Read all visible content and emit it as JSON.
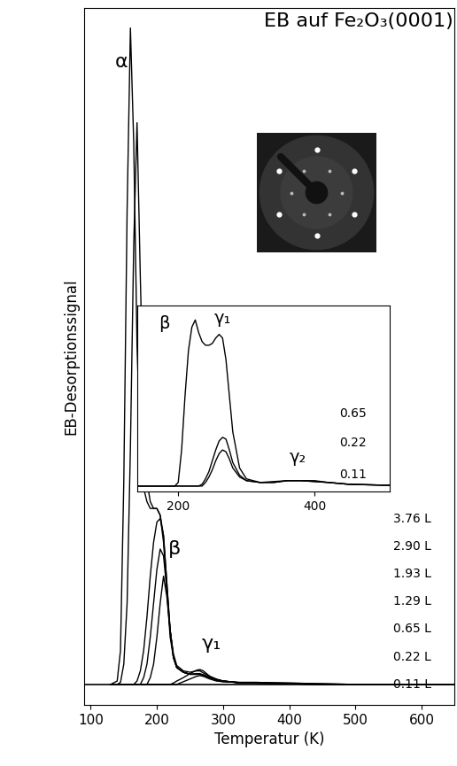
{
  "chart_data": [
    {
      "type": "line",
      "title": "EB auf Fe₂O₃(0001)",
      "x_label": "Temperatur (K)",
      "y_label": "EB-Desorptionssignal",
      "xlim": [
        90,
        650
      ],
      "xticks": [
        100,
        200,
        300,
        400,
        500,
        600
      ],
      "ylim": [
        -3,
        100
      ],
      "tick_labels": "x",
      "color": "#000000",
      "annotations": [
        "α",
        "β",
        "γ₁"
      ],
      "x": [
        130,
        140,
        145,
        150,
        155,
        160,
        165,
        170,
        175,
        180,
        185,
        190,
        195,
        200,
        205,
        210,
        215,
        220,
        225,
        230,
        240,
        250,
        260,
        265,
        270,
        280,
        290,
        300,
        320,
        350,
        400,
        450,
        500,
        550,
        600,
        650
      ],
      "series": [
        {
          "name": "3.76 L",
          "values": [
            0,
            0.5,
            5,
            30,
            70,
            97,
            80,
            50,
            35,
            29,
            27,
            26,
            26,
            26,
            25,
            22,
            15,
            8,
            4,
            2.5,
            1.8,
            1.5,
            1.5,
            1.5,
            1.4,
            1,
            0.7,
            0.5,
            0.3,
            0.2,
            0.1,
            0,
            0,
            0,
            0,
            0
          ]
        },
        {
          "name": "2.90 L",
          "values": [
            0,
            0,
            0.3,
            3,
            12,
            35,
            65,
            83,
            60,
            40,
            30,
            27,
            26,
            26,
            25,
            21,
            14,
            7,
            4,
            2.5,
            1.8,
            1.5,
            1.5,
            1.5,
            1.4,
            1,
            0.7,
            0.5,
            0.3,
            0.2,
            0.1,
            0,
            0,
            0,
            0,
            0
          ]
        },
        {
          "name": "1.93 L",
          "values": [
            0,
            0,
            0,
            0,
            0,
            0,
            0,
            0.5,
            2,
            5,
            10,
            16,
            21,
            24,
            24.5,
            22,
            15,
            8,
            4,
            2.5,
            1.8,
            1.5,
            1.5,
            1.5,
            1.4,
            1,
            0.7,
            0.5,
            0.3,
            0.2,
            0.1,
            0,
            0,
            0,
            0,
            0
          ]
        },
        {
          "name": "1.29 L",
          "values": [
            0,
            0,
            0,
            0,
            0,
            0,
            0,
            0,
            0,
            1,
            3,
            7,
            12,
            17,
            20,
            19,
            14,
            8,
            4,
            2.5,
            1.8,
            1.5,
            1.6,
            1.6,
            1.4,
            1,
            0.7,
            0.5,
            0.3,
            0.2,
            0.1,
            0,
            0,
            0,
            0,
            0
          ]
        },
        {
          "name": "0.65 L",
          "values": [
            0,
            0,
            0,
            0,
            0,
            0,
            0,
            0,
            0,
            0,
            0,
            1,
            3,
            7,
            12,
            16,
            13,
            8,
            4.5,
            2.8,
            2,
            1.8,
            2,
            2,
            1.7,
            1.2,
            0.8,
            0.5,
            0.3,
            0.2,
            0.1,
            0,
            0,
            0,
            0,
            0
          ]
        },
        {
          "name": "0.22 L",
          "values": [
            0,
            0,
            0,
            0,
            0,
            0,
            0,
            0,
            0,
            0,
            0,
            0,
            0,
            0,
            0,
            0,
            0,
            0,
            0.2,
            0.5,
            1,
            1.6,
            2.1,
            2.2,
            2,
            1.2,
            0.6,
            0.4,
            0.3,
            0.3,
            0.2,
            0.1,
            0,
            0,
            0,
            0
          ]
        },
        {
          "name": "0.11 L",
          "values": [
            0,
            0,
            0,
            0,
            0,
            0,
            0,
            0,
            0,
            0,
            0,
            0,
            0,
            0,
            0,
            0,
            0,
            0,
            0,
            0,
            0.4,
            0.8,
            1.2,
            1.3,
            1.2,
            0.8,
            0.5,
            0.4,
            0.3,
            0.3,
            0.2,
            0.1,
            0,
            0,
            0,
            0
          ]
        }
      ]
    },
    {
      "type": "line",
      "xlim": [
        140,
        510
      ],
      "xticks": [
        200,
        400
      ],
      "ylim": [
        -3,
        100
      ],
      "tick_labels": "x",
      "color": "#000000",
      "annotations": [
        "β",
        "γ₁",
        "γ₂"
      ],
      "x": [
        140,
        180,
        195,
        200,
        205,
        210,
        215,
        220,
        225,
        230,
        235,
        240,
        245,
        250,
        255,
        260,
        265,
        270,
        275,
        280,
        290,
        300,
        320,
        340,
        360,
        380,
        400,
        420,
        450,
        500,
        510
      ],
      "series": [
        {
          "name": "0.65",
          "values": [
            0,
            0,
            0,
            2,
            20,
            50,
            75,
            88,
            92,
            85,
            80,
            78,
            78,
            79,
            82,
            84,
            82,
            70,
            50,
            30,
            10,
            4,
            2,
            2,
            3,
            3,
            2.5,
            2,
            1,
            0.5,
            0.5
          ]
        },
        {
          "name": "0.22",
          "values": [
            0,
            0,
            0,
            0,
            0,
            0,
            0,
            0,
            0,
            0,
            1,
            4,
            8,
            14,
            20,
            25,
            27,
            26,
            20,
            13,
            6,
            3,
            2,
            2,
            3,
            3,
            2.5,
            2,
            1,
            0.5,
            0.5
          ]
        },
        {
          "name": "0.11",
          "values": [
            0,
            0,
            0,
            0,
            0,
            0,
            0,
            0,
            0,
            0,
            0,
            2,
            5,
            9,
            14,
            18,
            20,
            19,
            15,
            10,
            5,
            3,
            2,
            2.5,
            3,
            3,
            3,
            2,
            1,
            0.5,
            0.5
          ]
        }
      ]
    }
  ]
}
